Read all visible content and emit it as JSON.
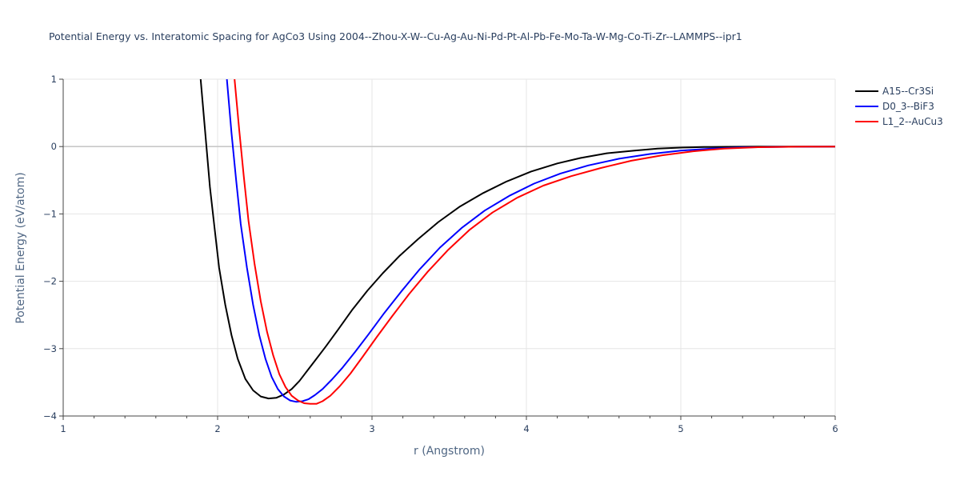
{
  "chart_data": {
    "type": "line",
    "title": "Potential Energy vs. Interatomic Spacing for AgCo3 Using 2004--Zhou-X-W--Cu-Ag-Au-Ni-Pd-Pt-Al-Pb-Fe-Mo-Ta-W-Mg-Co-Ti-Zr--LAMMPS--ipr1",
    "xlabel": "r (Angstrom)",
    "ylabel": "Potential Energy (eV/atom)",
    "xlim": [
      1,
      6
    ],
    "ylim": [
      -4,
      1
    ],
    "xticks": [
      1,
      2,
      3,
      4,
      5,
      6
    ],
    "xtick_labels": [
      "1",
      "2",
      "3",
      "4",
      "5",
      "6"
    ],
    "yticks": [
      1,
      0,
      -1,
      -2,
      -3,
      -4
    ],
    "ytick_labels": [
      "1",
      "0",
      "−1",
      "−2",
      "−3",
      "−4"
    ],
    "grid": true,
    "legend": "top-right",
    "series": [
      {
        "name": "A15--Cr3Si",
        "color": "#000000",
        "x": [
          1.89,
          1.92,
          1.95,
          1.98,
          2.01,
          2.05,
          2.09,
          2.13,
          2.18,
          2.23,
          2.28,
          2.33,
          2.38,
          2.43,
          2.48,
          2.53,
          2.58,
          2.63,
          2.7,
          2.78,
          2.87,
          2.97,
          3.07,
          3.18,
          3.3,
          3.43,
          3.57,
          3.72,
          3.87,
          4.03,
          4.2,
          4.35,
          4.52,
          4.7,
          4.85,
          5.0,
          5.15,
          5.3,
          5.5,
          5.75,
          6.0
        ],
        "y": [
          1.0,
          0.2,
          -0.6,
          -1.2,
          -1.8,
          -2.35,
          -2.8,
          -3.15,
          -3.45,
          -3.62,
          -3.71,
          -3.74,
          -3.73,
          -3.68,
          -3.6,
          -3.48,
          -3.33,
          -3.18,
          -2.97,
          -2.72,
          -2.43,
          -2.14,
          -1.88,
          -1.62,
          -1.37,
          -1.12,
          -0.89,
          -0.69,
          -0.52,
          -0.37,
          -0.25,
          -0.17,
          -0.1,
          -0.06,
          -0.03,
          -0.015,
          -0.007,
          -0.003,
          -0.001,
          0,
          0
        ]
      },
      {
        "name": "D0_3--BiF3",
        "color": "#0000ff",
        "x": [
          2.06,
          2.09,
          2.12,
          2.15,
          2.19,
          2.23,
          2.27,
          2.31,
          2.35,
          2.39,
          2.43,
          2.47,
          2.51,
          2.55,
          2.59,
          2.63,
          2.68,
          2.74,
          2.81,
          2.89,
          2.98,
          3.08,
          3.19,
          3.31,
          3.44,
          3.58,
          3.73,
          3.89,
          4.05,
          4.22,
          4.4,
          4.6,
          4.8,
          5.0,
          5.2,
          5.4,
          5.7,
          6.0
        ],
        "y": [
          1.0,
          0.2,
          -0.5,
          -1.15,
          -1.8,
          -2.35,
          -2.8,
          -3.15,
          -3.42,
          -3.6,
          -3.71,
          -3.77,
          -3.79,
          -3.78,
          -3.75,
          -3.69,
          -3.6,
          -3.46,
          -3.28,
          -3.05,
          -2.78,
          -2.47,
          -2.15,
          -1.82,
          -1.5,
          -1.21,
          -0.95,
          -0.73,
          -0.55,
          -0.4,
          -0.28,
          -0.18,
          -0.11,
          -0.06,
          -0.03,
          -0.012,
          -0.003,
          0
        ]
      },
      {
        "name": "L1_2--AuCu3",
        "color": "#ff0000",
        "x": [
          2.11,
          2.14,
          2.17,
          2.2,
          2.24,
          2.28,
          2.32,
          2.36,
          2.4,
          2.44,
          2.48,
          2.52,
          2.56,
          2.6,
          2.64,
          2.68,
          2.73,
          2.79,
          2.86,
          2.94,
          3.03,
          3.13,
          3.24,
          3.36,
          3.49,
          3.63,
          3.78,
          3.94,
          4.11,
          4.29,
          4.48,
          4.68,
          4.88,
          5.08,
          5.28,
          5.5,
          5.75,
          6.0
        ],
        "y": [
          1.0,
          0.25,
          -0.45,
          -1.1,
          -1.75,
          -2.3,
          -2.75,
          -3.1,
          -3.38,
          -3.57,
          -3.7,
          -3.77,
          -3.81,
          -3.82,
          -3.82,
          -3.78,
          -3.7,
          -3.56,
          -3.37,
          -3.12,
          -2.83,
          -2.52,
          -2.19,
          -1.86,
          -1.54,
          -1.24,
          -0.98,
          -0.76,
          -0.58,
          -0.44,
          -0.32,
          -0.21,
          -0.13,
          -0.07,
          -0.03,
          -0.01,
          -0.002,
          0
        ]
      }
    ]
  }
}
